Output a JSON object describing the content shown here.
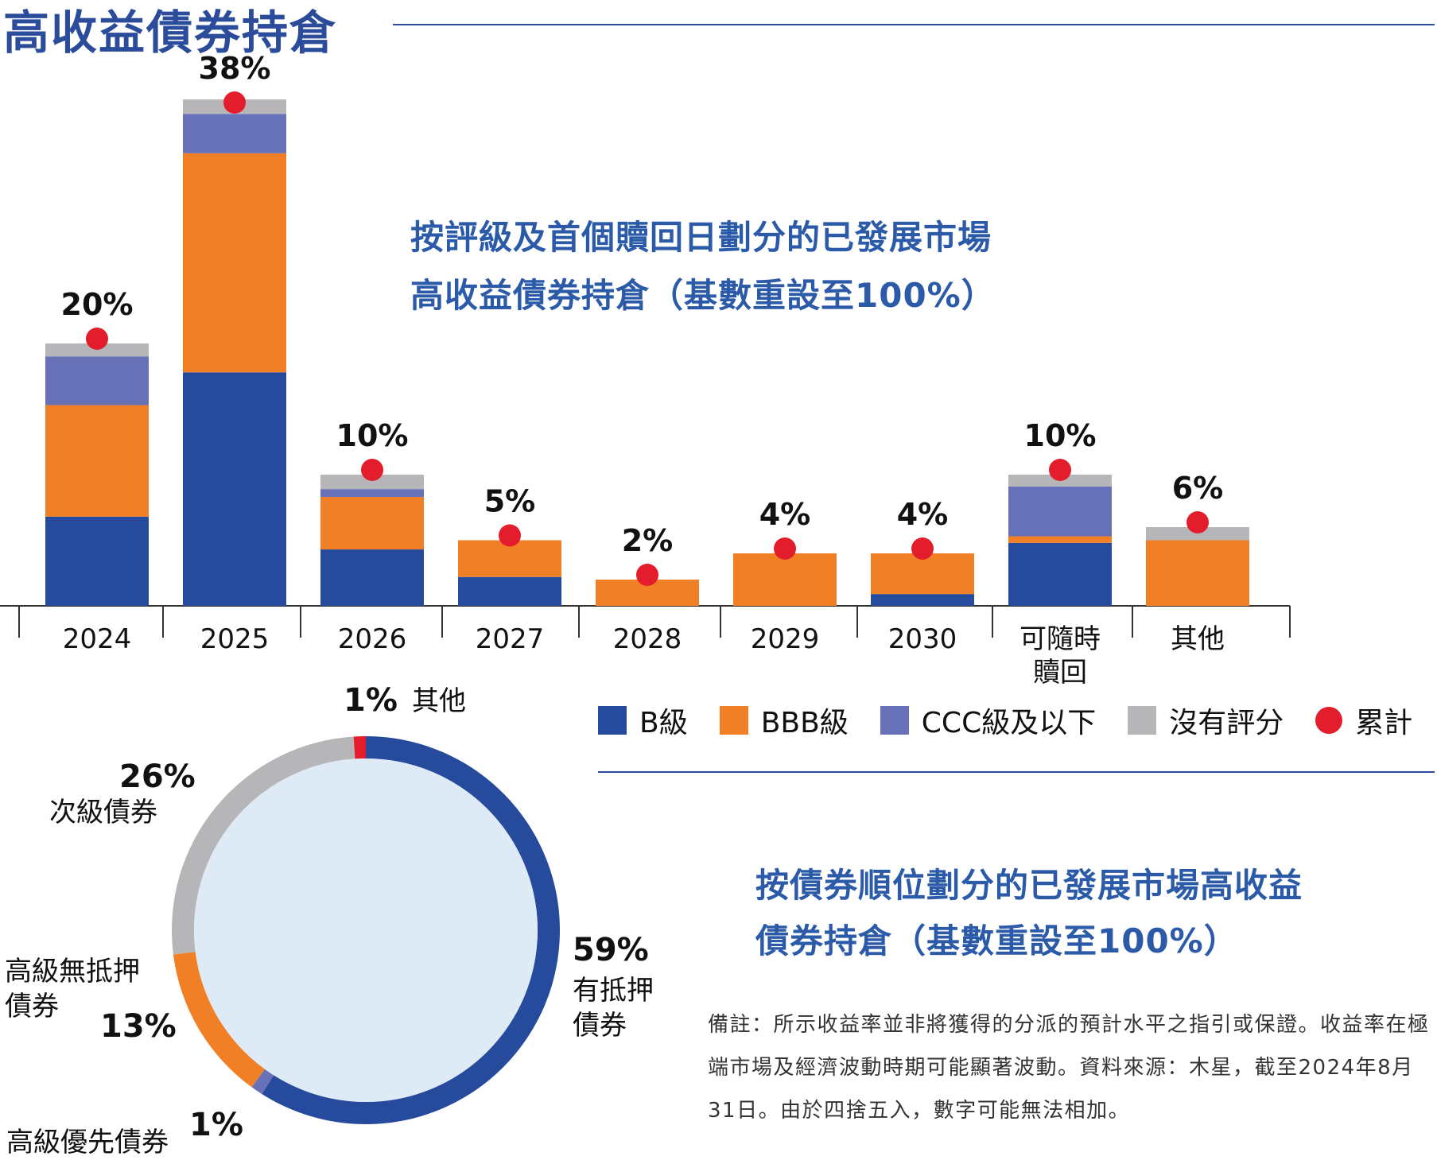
{
  "page_title": "高收益債券持倉",
  "colors": {
    "accent": "#2b4c9b",
    "B": "#274b9c",
    "BBB": "#f07f26",
    "CCC": "#6671b8",
    "unrated": "#b6b6b8",
    "cumulative": "#e31d2b",
    "donut_inner": "#deebf7"
  },
  "chart_data": [
    {
      "type": "bar",
      "stacked": true,
      "title_line1": "按評級及首個贖回日劃分的已發展市場",
      "title_line2": "高收益債券持倉（基數重設至100%）",
      "categories": [
        "2024",
        "2025",
        "2026",
        "2027",
        "2028",
        "2029",
        "2030",
        "可隨時\n贖回",
        "其他"
      ],
      "category_labels": [
        [
          "2024"
        ],
        [
          "2025"
        ],
        [
          "2026"
        ],
        [
          "2027"
        ],
        [
          "2028"
        ],
        [
          "2029"
        ],
        [
          "2030"
        ],
        [
          "可隨時",
          "贖回"
        ],
        [
          "其他"
        ]
      ],
      "totals": [
        20,
        38,
        10,
        5,
        2,
        4,
        4,
        10,
        6
      ],
      "total_labels": [
        "20%",
        "38%",
        "10%",
        "5%",
        "2%",
        "4%",
        "4%",
        "10%",
        "6%"
      ],
      "series": [
        {
          "name": "B級",
          "color_key": "B",
          "values": [
            6.8,
            17.8,
            4.3,
            2.2,
            0,
            0,
            0.9,
            4.8,
            0
          ]
        },
        {
          "name": "BBB級",
          "color_key": "BBB",
          "values": [
            8.5,
            16.7,
            4.0,
            2.8,
            2.0,
            4.0,
            3.1,
            0.5,
            5.0
          ]
        },
        {
          "name": "CCC級及以下",
          "color_key": "CCC",
          "values": [
            3.7,
            3.0,
            0.6,
            0,
            0,
            0,
            0,
            3.8,
            0
          ]
        },
        {
          "name": "沒有評分",
          "color_key": "unrated",
          "values": [
            1.0,
            1.1,
            1.1,
            0,
            0,
            0,
            0,
            0.9,
            1.0
          ]
        }
      ],
      "cumulative_label": "累計",
      "ylim": [
        0,
        40
      ],
      "legend_position": "bottom-right"
    },
    {
      "type": "pie",
      "donut": true,
      "title_line1": "按債券順位劃分的已發展市場高收益",
      "title_line2": "債券持倉（基數重設至100%）",
      "slices": [
        {
          "name": "有抵押債券",
          "label_lines": [
            "有抵押",
            "債券"
          ],
          "value": 59,
          "pct_label": "59%",
          "color_key": "B"
        },
        {
          "name": "高級優先債券",
          "label_lines": [
            "高級優先債券"
          ],
          "value": 1,
          "pct_label": "1%",
          "color_key": "CCC"
        },
        {
          "name": "高級無抵押債券",
          "label_lines": [
            "高級無抵押",
            "債券"
          ],
          "value": 13,
          "pct_label": "13%",
          "color_key": "BBB"
        },
        {
          "name": "次級債券",
          "label_lines": [
            "次級債券"
          ],
          "value": 26,
          "pct_label": "26%",
          "color_key": "unrated"
        },
        {
          "name": "其他",
          "label_lines": [
            "其他"
          ],
          "value": 1,
          "pct_label": "1%",
          "color_key": "cumulative"
        }
      ]
    }
  ],
  "note": "備註：所示收益率並非將獲得的分派的預計水平之指引或保證。收益率在極端市場及經濟波動時期可能顯著波動。資料來源：木星，截至2024年8月31日。由於四捨五入，數字可能無法相加。"
}
